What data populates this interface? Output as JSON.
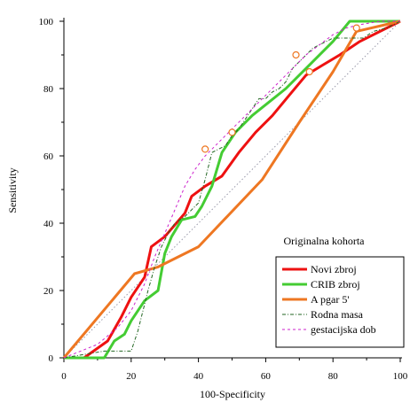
{
  "chart_data": {
    "type": "line",
    "title": "",
    "xlabel": "100-Specificity",
    "ylabel": "Sensitivity",
    "xlim": [
      0,
      100
    ],
    "ylim": [
      0,
      100
    ],
    "xticks": [
      0,
      20,
      40,
      60,
      80,
      100
    ],
    "yticks": [
      0,
      20,
      40,
      60,
      80,
      100
    ],
    "grid": false,
    "legend_title": "Originalna kohorta",
    "legend_position": "bottom-right",
    "series": [
      {
        "name": "Novi zbroj",
        "color": "#ee1111",
        "style": "solid",
        "width": "thick",
        "points": [
          [
            6,
            0
          ],
          [
            13,
            5
          ],
          [
            17,
            12
          ],
          [
            20,
            18
          ],
          [
            24,
            24
          ],
          [
            26,
            33
          ],
          [
            30,
            36
          ],
          [
            36,
            43
          ],
          [
            38,
            48
          ],
          [
            42,
            51
          ],
          [
            47,
            54
          ],
          [
            52,
            61
          ],
          [
            57,
            67
          ],
          [
            62,
            72
          ],
          [
            67,
            78
          ],
          [
            72,
            84
          ],
          [
            77,
            87
          ],
          [
            82,
            90
          ],
          [
            88,
            94
          ],
          [
            94,
            97
          ],
          [
            100,
            100
          ]
        ]
      },
      {
        "name": "CRIB zbroj",
        "color": "#44cc33",
        "style": "solid",
        "width": "thick",
        "points": [
          [
            0,
            0
          ],
          [
            12,
            0
          ],
          [
            15,
            5
          ],
          [
            18,
            7
          ],
          [
            20,
            11
          ],
          [
            24,
            17
          ],
          [
            28,
            20
          ],
          [
            30,
            31
          ],
          [
            32,
            36
          ],
          [
            35,
            41
          ],
          [
            39,
            42
          ],
          [
            41,
            45
          ],
          [
            44,
            51
          ],
          [
            47,
            61
          ],
          [
            51,
            67
          ],
          [
            56,
            72
          ],
          [
            61,
            76
          ],
          [
            66,
            80
          ],
          [
            72,
            86
          ],
          [
            80,
            94
          ],
          [
            85,
            100
          ],
          [
            100,
            100
          ]
        ]
      },
      {
        "name": "A pgar 5'",
        "color": "#ee7722",
        "style": "solid",
        "width": "thick",
        "points": [
          [
            0,
            0
          ],
          [
            21,
            25
          ],
          [
            28,
            27
          ],
          [
            40,
            33
          ],
          [
            59,
            53
          ],
          [
            70,
            70
          ],
          [
            80,
            85
          ],
          [
            87,
            97
          ],
          [
            100,
            100
          ]
        ]
      },
      {
        "name": "Rodna masa",
        "color": "#226622",
        "style": "dashdot",
        "width": "thin",
        "points": [
          [
            0,
            0
          ],
          [
            12,
            2
          ],
          [
            20,
            2
          ],
          [
            22,
            8
          ],
          [
            25,
            20
          ],
          [
            27,
            27
          ],
          [
            29,
            33
          ],
          [
            31,
            37
          ],
          [
            33,
            40
          ],
          [
            36,
            42
          ],
          [
            38,
            44
          ],
          [
            40,
            46
          ],
          [
            42,
            53
          ],
          [
            44,
            61
          ],
          [
            46,
            62
          ],
          [
            48,
            63
          ],
          [
            50,
            66
          ],
          [
            52,
            68
          ],
          [
            54,
            71
          ],
          [
            56,
            74
          ],
          [
            58,
            77
          ],
          [
            60,
            77
          ],
          [
            62,
            79
          ],
          [
            64,
            80
          ],
          [
            66,
            82
          ],
          [
            68,
            86
          ],
          [
            70,
            88
          ],
          [
            72,
            90
          ],
          [
            74,
            92
          ],
          [
            76,
            93
          ],
          [
            78,
            94
          ],
          [
            80,
            95
          ],
          [
            83,
            95
          ],
          [
            86,
            95
          ],
          [
            89,
            95
          ],
          [
            92,
            97
          ],
          [
            96,
            98
          ],
          [
            100,
            100
          ]
        ]
      },
      {
        "name": "gestacijska dob",
        "color": "#cc22cc",
        "style": "dashed",
        "width": "thin",
        "points": [
          [
            0,
            0
          ],
          [
            10,
            4
          ],
          [
            16,
            9
          ],
          [
            20,
            14
          ],
          [
            24,
            22
          ],
          [
            27,
            30
          ],
          [
            30,
            37
          ],
          [
            33,
            44
          ],
          [
            36,
            51
          ],
          [
            39,
            56
          ],
          [
            42,
            60
          ],
          [
            45,
            63
          ],
          [
            48,
            66
          ],
          [
            52,
            70
          ],
          [
            56,
            74
          ],
          [
            60,
            78
          ],
          [
            64,
            82
          ],
          [
            68,
            86
          ],
          [
            72,
            90
          ],
          [
            76,
            93
          ],
          [
            80,
            96
          ],
          [
            84,
            98
          ],
          [
            88,
            99
          ],
          [
            94,
            100
          ],
          [
            100,
            100
          ]
        ]
      },
      {
        "name": "",
        "color": "#9999aa",
        "style": "dotted",
        "width": "thin",
        "points": [
          [
            0,
            0
          ],
          [
            100,
            100
          ]
        ]
      }
    ],
    "cutoff_markers": [
      [
        42,
        62
      ],
      [
        50,
        67
      ],
      [
        69,
        90
      ],
      [
        73,
        85
      ],
      [
        87,
        98
      ]
    ],
    "cutoff_marker_color": "#ee7722"
  }
}
